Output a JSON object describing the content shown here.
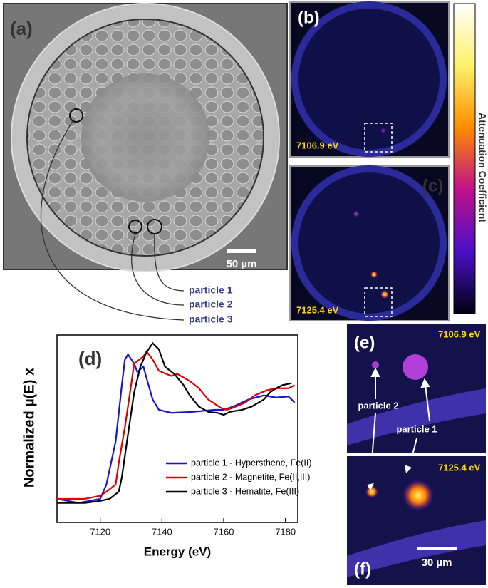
{
  "panels": {
    "a": {
      "label": "(a)",
      "scale_bar": "50 µm",
      "particles": [
        "particle 1",
        "particle 2",
        "particle 3"
      ]
    },
    "b": {
      "label": "(b)",
      "energy": "7106.9 eV"
    },
    "c": {
      "label": "(c)",
      "energy": "7125.4 eV"
    },
    "colorbar_label": "Attenuation Coefficient",
    "e": {
      "label": "(e)",
      "energy": "7106.9 eV",
      "particles": [
        "particle 2",
        "particle 1"
      ]
    },
    "f": {
      "label": "(f)",
      "energy": "7125.4 eV",
      "scale_bar": "30 µm"
    }
  },
  "chart_data": {
    "type": "line",
    "label": "(d)",
    "xlabel": "Energy (eV)",
    "ylabel": "Normalized µ(E) x",
    "xlim": [
      7106,
      7184
    ],
    "ylim": [
      -0.1,
      1.73
    ],
    "xticks": [
      7120,
      7140,
      7160,
      7180
    ],
    "legend": "right",
    "series": [
      {
        "name": "particle 1 - Hypersthene, Fe(II)",
        "color": "#1414d2",
        "x": [
          7106,
          7113,
          7120,
          7122,
          7125,
          7127,
          7128,
          7129,
          7131,
          7132,
          7134,
          7135,
          7137,
          7139,
          7143,
          7150,
          7157,
          7160,
          7163,
          7168,
          7173,
          7177,
          7181,
          7183
        ],
        "values": [
          0.13,
          0.09,
          0.13,
          0.27,
          0.69,
          1.24,
          1.49,
          1.54,
          1.45,
          1.37,
          1.42,
          1.31,
          1.1,
          1.0,
          0.97,
          0.98,
          1.0,
          1.0,
          1.03,
          1.1,
          1.14,
          1.12,
          1.13,
          1.07
        ]
      },
      {
        "name": "particle 2 - Magnetite, Fe(II,III)",
        "color": "#e00000",
        "x": [
          7106,
          7115,
          7120,
          7122,
          7125,
          7126,
          7128,
          7130,
          7131,
          7134,
          7135,
          7137,
          7139,
          7143,
          7145,
          7149,
          7152,
          7155,
          7159,
          7161,
          7163,
          7167,
          7170,
          7174,
          7177,
          7181,
          7183
        ],
        "values": [
          0.13,
          0.13,
          0.16,
          0.2,
          0.27,
          0.48,
          0.83,
          1.24,
          1.45,
          1.52,
          1.57,
          1.49,
          1.38,
          1.33,
          1.35,
          1.28,
          1.21,
          1.1,
          1.02,
          1.0,
          1.02,
          1.07,
          1.14,
          1.19,
          1.21,
          1.21,
          1.24
        ]
      },
      {
        "name": "particle 3 - Hematite, Fe(III)",
        "color": "#000000",
        "x": [
          7106,
          7115,
          7120,
          7123,
          7126,
          7127,
          7129,
          7131,
          7133,
          7135,
          7137,
          7139,
          7141,
          7144,
          7147,
          7149,
          7152,
          7155,
          7158,
          7160,
          7162,
          7166,
          7169,
          7173,
          7175,
          7177,
          7179,
          7182
        ],
        "values": [
          0.09,
          0.09,
          0.11,
          0.13,
          0.2,
          0.34,
          0.76,
          1.17,
          1.42,
          1.56,
          1.65,
          1.59,
          1.42,
          1.35,
          1.24,
          1.14,
          1.03,
          0.98,
          0.97,
          0.95,
          0.98,
          1.0,
          1.03,
          1.1,
          1.17,
          1.21,
          1.24,
          1.26
        ]
      }
    ]
  }
}
